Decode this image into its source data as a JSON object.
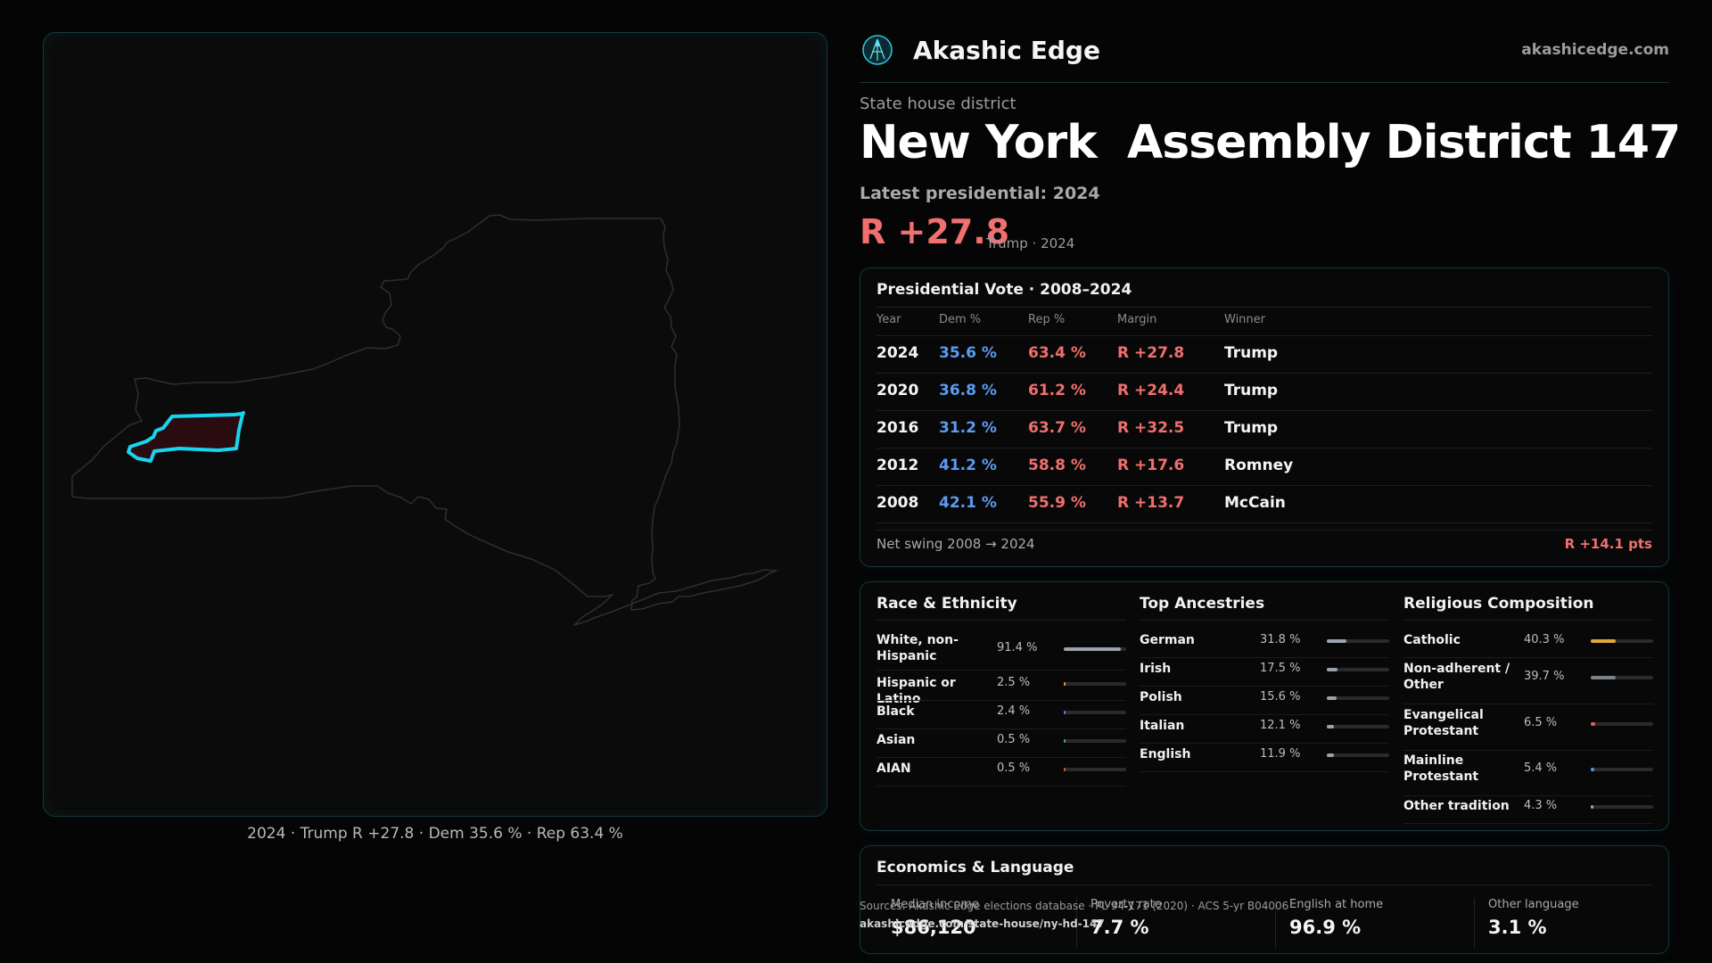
{
  "brand": {
    "name": "Akashic Edge",
    "url": "akashicedge.com"
  },
  "header": {
    "kicker": "State house district",
    "title": "New York  Assembly District 147",
    "latest": "Latest presidential: 2024",
    "margin": "R +27.8",
    "margin_sub": "Trump · 2024"
  },
  "map": {
    "caption": "2024 · Trump R +27.8 · Dem 35.6 % · Rep 63.4 %",
    "highlight_color": "#19d4f0"
  },
  "presidential": {
    "title": "Presidential Vote · 2008–2024",
    "columns": [
      "Year",
      "Dem %",
      "Rep %",
      "Margin",
      "Winner"
    ],
    "rows": [
      {
        "year": "2024",
        "dem": "35.6 %",
        "rep": "63.4 %",
        "margin": "R +27.8",
        "winner": "Trump"
      },
      {
        "year": "2020",
        "dem": "36.8 %",
        "rep": "61.2 %",
        "margin": "R +24.4",
        "winner": "Trump"
      },
      {
        "year": "2016",
        "dem": "31.2 %",
        "rep": "63.7 %",
        "margin": "R +32.5",
        "winner": "Trump"
      },
      {
        "year": "2012",
        "dem": "41.2 %",
        "rep": "58.8 %",
        "margin": "R +17.6",
        "winner": "Romney"
      },
      {
        "year": "2008",
        "dem": "42.1 %",
        "rep": "55.9 %",
        "margin": "R +13.7",
        "winner": "McCain"
      }
    ],
    "swing_label": "Net swing 2008 → 2024",
    "swing_value": "R +14.1 pts"
  },
  "race": {
    "title": "Race & Ethnicity",
    "items": [
      {
        "label": "White, non-Hispanic",
        "value": "91.4 %",
        "level": 0.914,
        "color": "#9aa3ad"
      },
      {
        "label": "Hispanic or Latino",
        "value": "2.5 %",
        "level": 0.025,
        "color": "#e0a03a"
      },
      {
        "label": "Black",
        "value": "2.4 %",
        "level": 0.024,
        "color": "#6a7ae0"
      },
      {
        "label": "Asian",
        "value": "0.5 %",
        "level": 0.005,
        "color": "#3ab07a"
      },
      {
        "label": "AIAN",
        "value": "0.5 %",
        "level": 0.005,
        "color": "#c0603a"
      }
    ]
  },
  "ancestry": {
    "title": "Top Ancestries",
    "items": [
      {
        "label": "German",
        "value": "31.8 %",
        "level": 0.318,
        "color": "#9aa3ad"
      },
      {
        "label": "Irish",
        "value": "17.5 %",
        "level": 0.175,
        "color": "#9aa3ad"
      },
      {
        "label": "Polish",
        "value": "15.6 %",
        "level": 0.156,
        "color": "#9aa3ad"
      },
      {
        "label": "Italian",
        "value": "12.1 %",
        "level": 0.121,
        "color": "#9aa3ad"
      },
      {
        "label": "English",
        "value": "11.9 %",
        "level": 0.119,
        "color": "#9aa3ad"
      }
    ]
  },
  "religion": {
    "title": "Religious Composition",
    "items": [
      {
        "label": "Catholic",
        "value": "40.3 %",
        "level": 0.403,
        "color": "#e0a83a"
      },
      {
        "label": "Non-adherent / Other",
        "value": "39.7 %",
        "level": 0.397,
        "color": "#7c828a"
      },
      {
        "label": "Evangelical Protestant",
        "value": "6.5 %",
        "level": 0.065,
        "color": "#e06060"
      },
      {
        "label": "Mainline Protestant",
        "value": "5.4 %",
        "level": 0.054,
        "color": "#5b8ef0"
      },
      {
        "label": "Other tradition",
        "value": "4.3 %",
        "level": 0.043,
        "color": "#9aa3ad"
      }
    ]
  },
  "economics": {
    "title": "Economics & Language",
    "items": [
      {
        "label": "Median income",
        "value": "$86,120"
      },
      {
        "label": "Poverty rate",
        "value": "7.7 %"
      },
      {
        "label": "English at home",
        "value": "96.9 %"
      },
      {
        "label": "Other language",
        "value": "3.1 %"
      }
    ]
  },
  "source": {
    "text": "Sources: Akashic Edge elections database · PL 94-171 (2020) · ACS 5-yr B04006",
    "url": "akashicedge.com/state-house/ny-hd-147"
  }
}
